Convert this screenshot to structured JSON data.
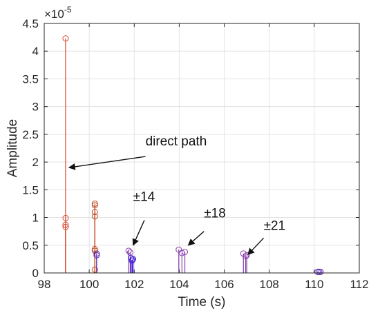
{
  "chart_data": {
    "type": "stem",
    "xlabel": "Time (s)",
    "ylabel": "Amplitude",
    "xlim": [
      98,
      112
    ],
    "ylim": [
      0,
      4.5e-05
    ],
    "xticks": [
      98,
      100,
      102,
      104,
      106,
      108,
      110,
      112
    ],
    "yticks": [
      0,
      0.5,
      1,
      1.5,
      2,
      2.5,
      3,
      3.5,
      4,
      4.5
    ],
    "ytick_labels": [
      "0",
      "0.5",
      "1",
      "1.5",
      "2",
      "2.5",
      "3",
      "3.5",
      "4",
      "4.5"
    ],
    "y_exponent": {
      "base": "×10",
      "power": "-5"
    },
    "grid": true,
    "series": [
      {
        "color": "#d9462f",
        "points": [
          [
            98.95,
            4.23e-05
          ],
          [
            98.95,
            9.9e-06
          ],
          [
            98.95,
            8.7e-06
          ],
          [
            98.95,
            8.3e-06
          ]
        ]
      },
      {
        "color": "#c04a25",
        "points": [
          [
            100.25,
            1.25e-05
          ],
          [
            100.25,
            1.22e-05
          ],
          [
            100.25,
            1.1e-05
          ],
          [
            100.25,
            1.02e-05
          ],
          [
            100.25,
            4.3e-06
          ],
          [
            100.25,
            4e-06
          ],
          [
            100.25,
            6e-07
          ]
        ]
      },
      {
        "color": "#5a28b4",
        "points": [
          [
            100.33,
            3.5e-06
          ],
          [
            100.33,
            3.2e-06
          ]
        ]
      },
      {
        "color": "#8a3fae",
        "points": [
          [
            101.75,
            4e-06
          ],
          [
            101.82,
            3.7e-06
          ]
        ]
      },
      {
        "color": "#4b2bd4",
        "points": [
          [
            101.85,
            2.7e-06
          ],
          [
            101.92,
            2.4e-06
          ],
          [
            101.95,
            2.5e-06
          ],
          [
            101.9,
            2.2e-06
          ]
        ]
      },
      {
        "color": "#8a3fae",
        "points": [
          [
            103.98,
            4.2e-06
          ],
          [
            104.12,
            3.6e-06
          ],
          [
            104.25,
            3.8e-06
          ]
        ]
      },
      {
        "color": "#8a3fae",
        "points": [
          [
            106.85,
            3.5e-06
          ],
          [
            106.95,
            3e-06
          ],
          [
            107.0,
            3.2e-06
          ]
        ]
      },
      {
        "color": "#5a28b4",
        "points": [
          [
            110.15,
            2e-07
          ],
          [
            110.22,
            2e-07
          ],
          [
            110.28,
            2e-07
          ]
        ]
      }
    ],
    "annotations": [
      {
        "text": "direct path",
        "from": [
          102.5,
          2.1e-05
        ],
        "to": [
          99.1,
          1.9e-05
        ],
        "text_at": [
          102.5,
          2.3e-05
        ]
      },
      {
        "text": "±14",
        "from": [
          102.45,
          9.5e-06
        ],
        "to": [
          101.95,
          5e-06
        ],
        "text_at": [
          101.95,
          1.3e-05
        ]
      },
      {
        "text": "±18",
        "from": [
          105.1,
          7.5e-06
        ],
        "to": [
          104.4,
          5e-06
        ],
        "text_at": [
          105.1,
          1e-05
        ]
      },
      {
        "text": "±21",
        "from": [
          107.75,
          6.3e-06
        ],
        "to": [
          107.05,
          3.3e-06
        ],
        "text_at": [
          107.75,
          7.8e-06
        ]
      }
    ]
  }
}
